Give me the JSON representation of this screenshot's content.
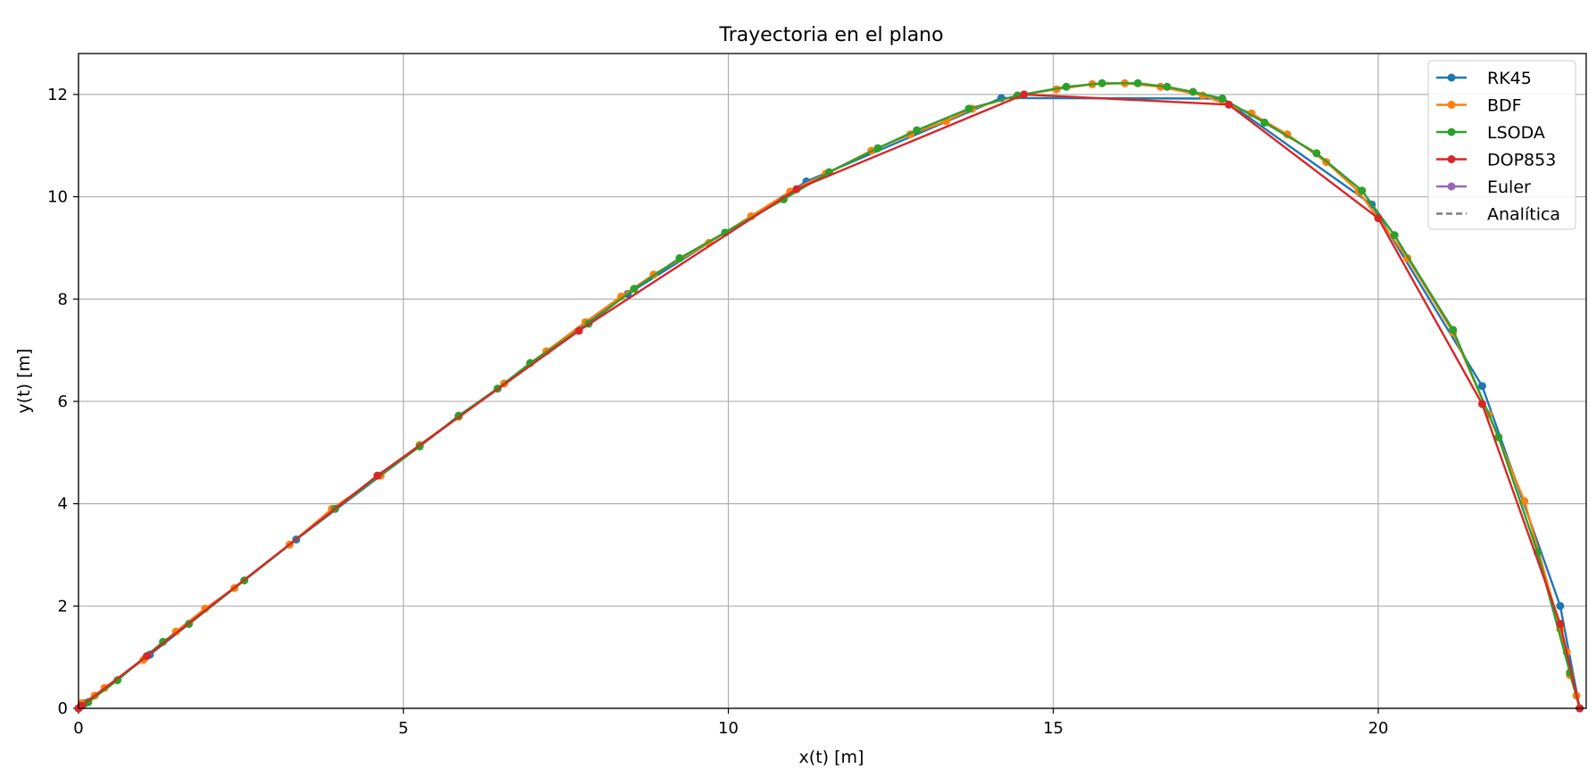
{
  "chart_data": {
    "type": "line",
    "title": "Trayectoria en el plano",
    "xlabel": "x(t) [m]",
    "ylabel": "y(t) [m]",
    "xlim": [
      0,
      23.2
    ],
    "ylim": [
      0,
      12.8
    ],
    "xticks": [
      0,
      5,
      10,
      15,
      20
    ],
    "yticks": [
      0,
      2,
      4,
      6,
      8,
      10,
      12
    ],
    "grid": true,
    "legend_position": "top-right",
    "series": [
      {
        "name": "RK45",
        "color": "#1f77b4",
        "style": "solid",
        "marker": true,
        "x": [
          0,
          0.1,
          1.1,
          3.35,
          5.85,
          8.45,
          11.2,
          14.2,
          17.6,
          19.9,
          21.6,
          22.8,
          23.1
        ],
        "y": [
          0,
          0.1,
          1.05,
          3.3,
          5.7,
          8.1,
          10.3,
          11.93,
          11.92,
          9.85,
          6.3,
          2.0,
          0
        ]
      },
      {
        "name": "BDF",
        "color": "#ff7f0e",
        "style": "solid",
        "marker": true,
        "x": [
          0,
          0.05,
          0.25,
          0.4,
          1.0,
          1.5,
          1.95,
          2.4,
          3.25,
          3.9,
          4.65,
          5.25,
          5.85,
          6.55,
          7.2,
          7.8,
          8.35,
          8.85,
          9.7,
          10.35,
          10.95,
          11.5,
          12.2,
          12.8,
          13.35,
          13.75,
          14.45,
          15.05,
          15.6,
          16.1,
          16.65,
          17.3,
          18.05,
          18.6,
          19.2,
          19.7,
          20.45,
          21.15,
          21.7,
          22.25,
          22.8,
          22.9,
          22.95,
          23.05,
          23.1
        ],
        "y": [
          0,
          0.1,
          0.25,
          0.4,
          0.95,
          1.5,
          1.95,
          2.35,
          3.2,
          3.9,
          4.55,
          5.15,
          5.7,
          6.35,
          6.98,
          7.55,
          8.05,
          8.48,
          9.1,
          9.62,
          10.1,
          10.45,
          10.9,
          11.22,
          11.48,
          11.72,
          11.98,
          12.1,
          12.2,
          12.22,
          12.15,
          11.98,
          11.63,
          11.22,
          10.68,
          10.1,
          8.8,
          7.35,
          5.75,
          4.05,
          1.55,
          1.1,
          0.65,
          0.25,
          0
        ]
      },
      {
        "name": "LSODA",
        "color": "#2ca02c",
        "style": "solid",
        "marker": true,
        "x": [
          0,
          0.15,
          0.6,
          1.3,
          1.7,
          2.55,
          3.95,
          5.25,
          5.85,
          6.45,
          6.95,
          7.85,
          8.55,
          9.25,
          9.95,
          10.85,
          11.55,
          12.3,
          12.9,
          13.7,
          14.45,
          15.2,
          15.75,
          16.3,
          16.75,
          17.15,
          17.6,
          18.25,
          19.05,
          19.75,
          20.25,
          21.15,
          21.85,
          22.45,
          22.95,
          23.1
        ],
        "y": [
          0,
          0.12,
          0.55,
          1.3,
          1.65,
          2.5,
          3.9,
          5.12,
          5.72,
          6.25,
          6.75,
          7.52,
          8.2,
          8.8,
          9.3,
          9.95,
          10.48,
          10.95,
          11.3,
          11.72,
          11.98,
          12.15,
          12.22,
          12.22,
          12.15,
          12.05,
          11.92,
          11.45,
          10.85,
          10.12,
          9.25,
          7.4,
          5.3,
          3.05,
          0.7,
          0
        ]
      },
      {
        "name": "DOP853",
        "color": "#d62728",
        "style": "solid",
        "marker": true,
        "x": [
          0,
          0.05,
          1.05,
          4.6,
          7.7,
          11.05,
          14.55,
          17.7,
          20.0,
          21.6,
          22.8,
          23.1
        ],
        "y": [
          0,
          0.05,
          1.02,
          4.55,
          7.38,
          10.15,
          12.0,
          11.8,
          9.58,
          5.95,
          1.65,
          0
        ]
      },
      {
        "name": "Euler",
        "color": "#9467bd",
        "style": "solid",
        "marker": true,
        "x": [],
        "y": []
      },
      {
        "name": "Analítica",
        "color": "#7f7f7f",
        "style": "dashed",
        "marker": false,
        "x": [],
        "y": []
      }
    ]
  }
}
